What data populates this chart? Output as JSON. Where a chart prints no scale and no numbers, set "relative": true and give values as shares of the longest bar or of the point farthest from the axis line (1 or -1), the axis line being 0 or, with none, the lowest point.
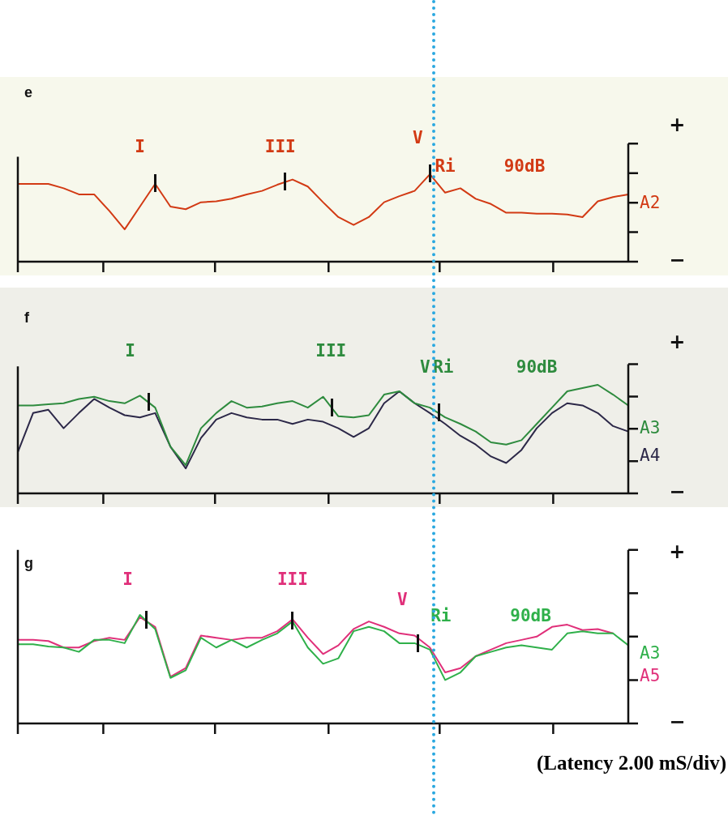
{
  "chart_data": [
    {
      "type": "line",
      "title": "e",
      "relative": true,
      "tick_labels": false,
      "marker": "none",
      "legend": false,
      "categories": [
        null,
        null,
        null,
        null,
        null,
        null,
        null,
        null,
        null,
        null,
        null,
        null,
        null,
        null,
        null,
        null,
        null,
        null,
        null,
        null,
        null,
        null,
        null,
        null,
        null,
        null,
        null,
        null,
        null,
        null,
        null,
        null,
        null,
        null,
        null,
        null,
        null,
        null,
        null,
        null,
        null
      ],
      "series": [
        {
          "name": "A2",
          "color": "#d23a14",
          "values": [
            0.89,
            0.89,
            0.89,
            0.84,
            0.77,
            0.77,
            0.58,
            0.37,
            0.63,
            0.89,
            0.63,
            0.6,
            0.68,
            0.69,
            0.72,
            0.77,
            0.81,
            0.88,
            0.94,
            0.86,
            0.68,
            0.51,
            0.42,
            0.51,
            0.68,
            0.75,
            0.81,
            1,
            0.79,
            0.84,
            0.72,
            0.66,
            0.56,
            0.56,
            0.55,
            0.55,
            0.54,
            0.51,
            0.69,
            0.74,
            0.77
          ]
        }
      ],
      "annotations": [
        "I",
        "III",
        "V",
        "Ri",
        "90dB",
        "+",
        "−"
      ]
    },
    {
      "type": "line",
      "title": "f",
      "relative": true,
      "tick_labels": false,
      "marker": "none",
      "legend": false,
      "categories": [
        null,
        null,
        null,
        null,
        null,
        null,
        null,
        null,
        null,
        null,
        null,
        null,
        null,
        null,
        null,
        null,
        null,
        null,
        null,
        null,
        null,
        null,
        null,
        null,
        null,
        null,
        null,
        null,
        null,
        null,
        null,
        null,
        null,
        null,
        null,
        null,
        null,
        null,
        null,
        null,
        null
      ],
      "series": [
        {
          "name": "A3",
          "color": "#2e8b3e",
          "values": [
            0.81,
            0.81,
            0.82,
            0.83,
            0.87,
            0.89,
            0.85,
            0.83,
            0.9,
            0.79,
            0.43,
            0.26,
            0.6,
            0.74,
            0.85,
            0.79,
            0.8,
            0.83,
            0.85,
            0.79,
            0.89,
            0.71,
            0.7,
            0.72,
            0.91,
            0.94,
            0.83,
            0.79,
            0.7,
            0.64,
            0.57,
            0.47,
            0.45,
            0.49,
            0.64,
            0.79,
            0.94,
            0.97,
            1,
            0.91,
            0.81
          ]
        },
        {
          "name": "A4",
          "color": "#2c2848",
          "values": [
            0.38,
            0.74,
            0.77,
            0.6,
            0.74,
            0.87,
            0.79,
            0.72,
            0.7,
            0.74,
            0.43,
            0.23,
            0.51,
            0.68,
            0.74,
            0.7,
            0.68,
            0.68,
            0.64,
            0.68,
            0.66,
            0.6,
            0.52,
            0.6,
            0.83,
            0.94,
            0.83,
            0.74,
            0.64,
            0.53,
            0.45,
            0.34,
            0.28,
            0.4,
            0.6,
            0.74,
            0.83,
            0.81,
            0.74,
            0.62,
            0.57
          ]
        }
      ],
      "annotations": [
        "I",
        "III",
        "V",
        "Ri",
        "90dB",
        "+",
        "−"
      ]
    },
    {
      "type": "line",
      "title": "g",
      "relative": true,
      "tick_labels": false,
      "marker": "none",
      "legend": false,
      "xlabel": "(Latency 2.00 mS/div)",
      "categories": [
        null,
        null,
        null,
        null,
        null,
        null,
        null,
        null,
        null,
        null,
        null,
        null,
        null,
        null,
        null,
        null,
        null,
        null,
        null,
        null,
        null,
        null,
        null,
        null,
        null,
        null,
        null,
        null,
        null,
        null,
        null,
        null,
        null,
        null,
        null,
        null,
        null,
        null,
        null,
        null,
        null
      ],
      "series": [
        {
          "name": "A3",
          "color": "#2fb04a",
          "values": [
            0.73,
            0.73,
            0.71,
            0.7,
            0.66,
            0.77,
            0.77,
            0.74,
            1,
            0.87,
            0.42,
            0.49,
            0.79,
            0.7,
            0.77,
            0.7,
            0.77,
            0.83,
            0.94,
            0.7,
            0.55,
            0.6,
            0.85,
            0.89,
            0.85,
            0.74,
            0.74,
            0.68,
            0.4,
            0.47,
            0.62,
            0.66,
            0.7,
            0.72,
            0.7,
            0.68,
            0.83,
            0.85,
            0.83,
            0.83,
            0.72
          ]
        },
        {
          "name": "A5",
          "color": "#e0307a",
          "values": [
            0.77,
            0.77,
            0.76,
            0.7,
            0.7,
            0.76,
            0.79,
            0.77,
            0.98,
            0.89,
            0.43,
            0.51,
            0.81,
            0.79,
            0.77,
            0.79,
            0.79,
            0.85,
            0.96,
            0.79,
            0.64,
            0.72,
            0.87,
            0.94,
            0.89,
            0.83,
            0.81,
            0.7,
            0.47,
            0.51,
            0.62,
            0.68,
            0.74,
            0.77,
            0.8,
            0.89,
            0.91,
            0.86,
            0.87,
            0.83,
            null
          ]
        }
      ],
      "annotations": [
        "I",
        "III",
        "V",
        "Ri",
        "90dB",
        "+",
        "−"
      ]
    }
  ]
}
